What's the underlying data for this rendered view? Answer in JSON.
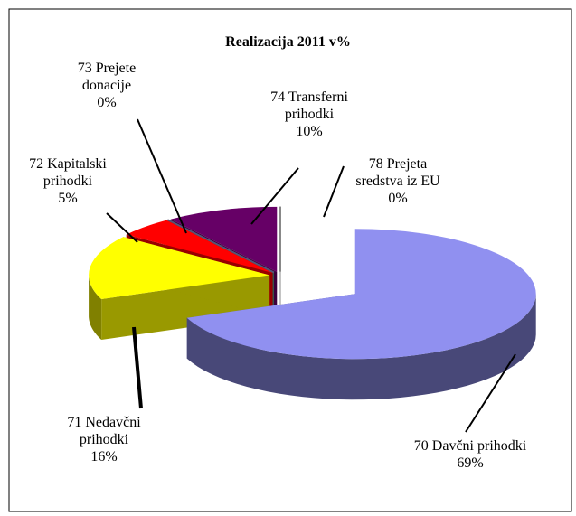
{
  "chart_data": {
    "type": "pie",
    "title": "Realizacija 2011 v%",
    "categories": [
      "70 Davčni prihodki",
      "71 Nedavčni prihodki",
      "72 Kapitalski prihodki",
      "73 Prejete donacije",
      "74 Transferni prihodki",
      "78 Prejeta sredstva iz EU"
    ],
    "values": [
      69,
      16,
      5,
      0,
      10,
      0
    ],
    "value_labels": [
      "69%",
      "16%",
      "5%",
      "0%",
      "10%",
      "0%"
    ],
    "colors": [
      "#9090f0",
      "#ffff00",
      "#ff0000",
      "#5a8a7a",
      "#660066",
      "#ffffff"
    ]
  }
}
